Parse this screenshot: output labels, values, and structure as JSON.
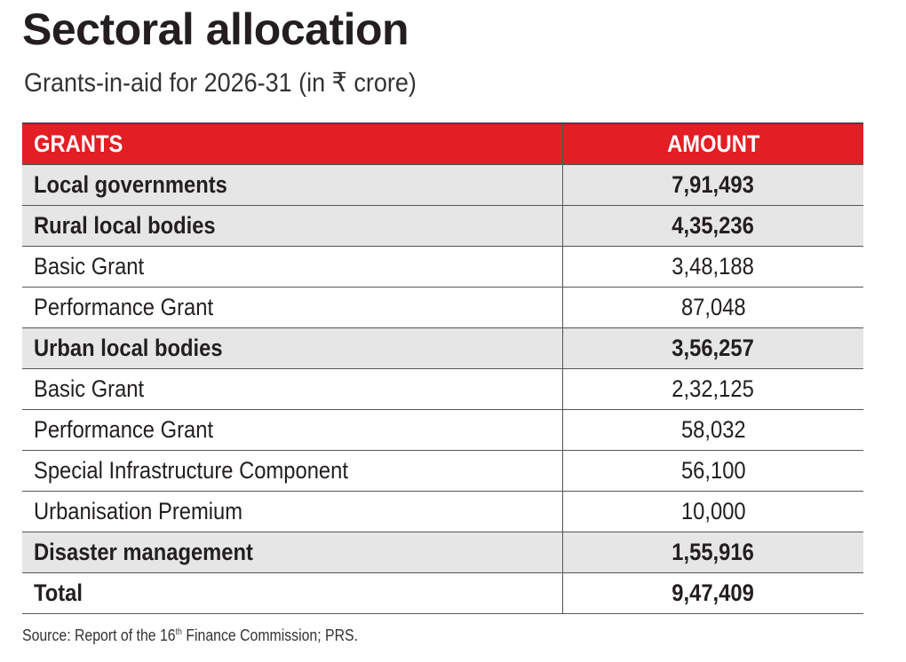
{
  "title": "Sectoral allocation",
  "subtitle": "Grants-in-aid for 2026-31 (in ₹ crore)",
  "chart_data": {
    "type": "table",
    "columns": [
      "GRANTS",
      "AMOUNT"
    ],
    "rows": [
      {
        "label": "Local governments",
        "amount": "7,91,493",
        "bold": true,
        "shaded": true
      },
      {
        "label": "Rural local bodies",
        "amount": "4,35,236",
        "bold": true,
        "shaded": true
      },
      {
        "label": "Basic Grant",
        "amount": "3,48,188",
        "bold": false,
        "shaded": false
      },
      {
        "label": "Performance Grant",
        "amount": "87,048",
        "bold": false,
        "shaded": false
      },
      {
        "label": "Urban local bodies",
        "amount": "3,56,257",
        "bold": true,
        "shaded": true
      },
      {
        "label": "Basic Grant",
        "amount": "2,32,125",
        "bold": false,
        "shaded": false
      },
      {
        "label": "Performance Grant",
        "amount": "58,032",
        "bold": false,
        "shaded": false
      },
      {
        "label": "Special Infrastructure Component",
        "amount": "56,100",
        "bold": false,
        "shaded": false
      },
      {
        "label": "Urbanisation Premium",
        "amount": "10,000",
        "bold": false,
        "shaded": false
      },
      {
        "label": "Disaster management",
        "amount": "1,55,916",
        "bold": true,
        "shaded": true
      },
      {
        "label": "Total",
        "amount": "9,47,409",
        "bold": true,
        "shaded": false
      }
    ]
  },
  "source": {
    "prefix": "Source: Report of the 16",
    "sup": "th",
    "suffix": " Finance Commission; PRS."
  },
  "colors": {
    "header": "#e31e24",
    "shade": "#e6e6e6",
    "text": "#231f20"
  }
}
